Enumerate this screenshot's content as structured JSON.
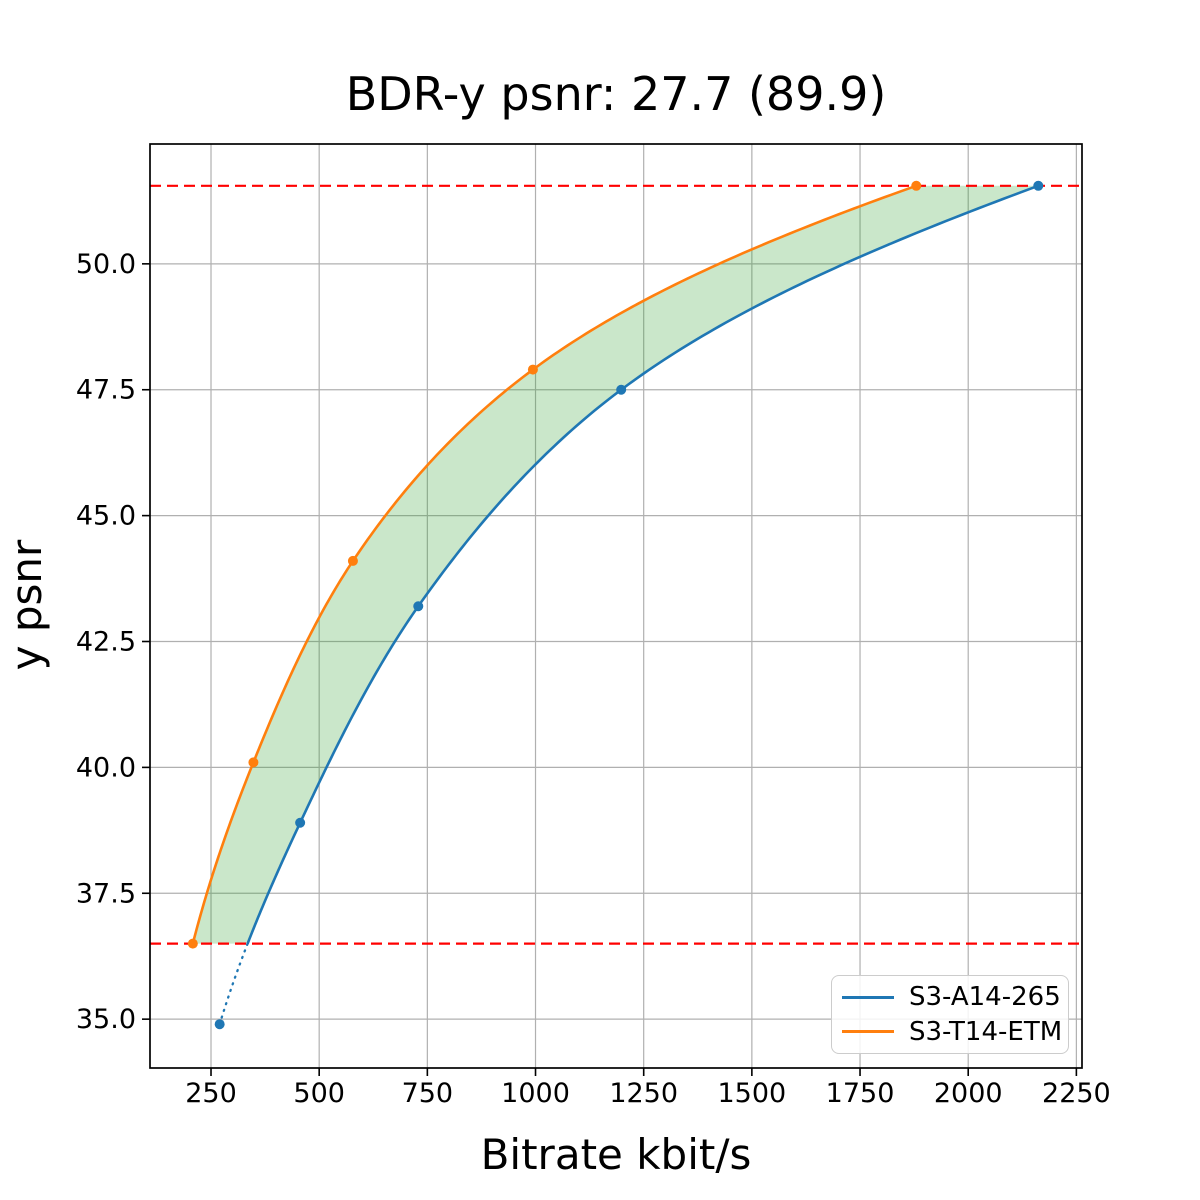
{
  "title": "BDR-y psnr: 27.7 (89.9)",
  "axes": {
    "xlabel": "Bitrate kbit/s",
    "ylabel": "y psnr"
  },
  "legend": {
    "position": "lower right",
    "items": [
      {
        "label": "S3-A14-265",
        "color": "#1f77b4"
      },
      {
        "label": "S3-T14-ETM",
        "color": "#ff7f0e"
      }
    ]
  },
  "chart_data": {
    "type": "line",
    "title": "BDR-y psnr: 27.7 (89.9)",
    "xlabel": "Bitrate kbit/s",
    "ylabel": "y psnr",
    "xlim": [
      109,
      2263
    ],
    "ylim": [
      34.03,
      52.38
    ],
    "xticks": [
      250,
      500,
      750,
      1000,
      1250,
      1500,
      1750,
      2000,
      2250
    ],
    "xtick_labels": [
      "250",
      "500",
      "750",
      "1000",
      "1250",
      "1500",
      "1750",
      "2000",
      "2250"
    ],
    "yticks": [
      35.0,
      37.5,
      40.0,
      42.5,
      45.0,
      47.5,
      50.0
    ],
    "ytick_labels": [
      "35.0",
      "37.5",
      "40.0",
      "42.5",
      "45.0",
      "47.5",
      "50.0"
    ],
    "grid": true,
    "grid_color": "#b0b0b0",
    "series": [
      {
        "name": "S3-A14-265",
        "color": "#1f77b4",
        "marker": "circle",
        "interpolation": "pchip-log",
        "points": [
          [
            270,
            34.9
          ],
          [
            456,
            38.9
          ],
          [
            729,
            43.2
          ],
          [
            1198,
            47.5
          ],
          [
            2162,
            51.55
          ]
        ],
        "dotted_below_psnr": 36.5
      },
      {
        "name": "S3-T14-ETM",
        "color": "#ff7f0e",
        "marker": "circle",
        "interpolation": "pchip-log",
        "points": [
          [
            208,
            36.5
          ],
          [
            348,
            40.1
          ],
          [
            578,
            44.1
          ],
          [
            994,
            47.9
          ],
          [
            1880,
            51.55
          ]
        ]
      }
    ],
    "hlines": {
      "values": [
        36.5,
        51.55
      ],
      "color": "#ff0000",
      "linestyle": "dashed"
    },
    "fill_between_curves": {
      "color": "#2ca02c",
      "alpha": 0.25,
      "psnr_range": [
        36.5,
        51.55
      ]
    }
  }
}
